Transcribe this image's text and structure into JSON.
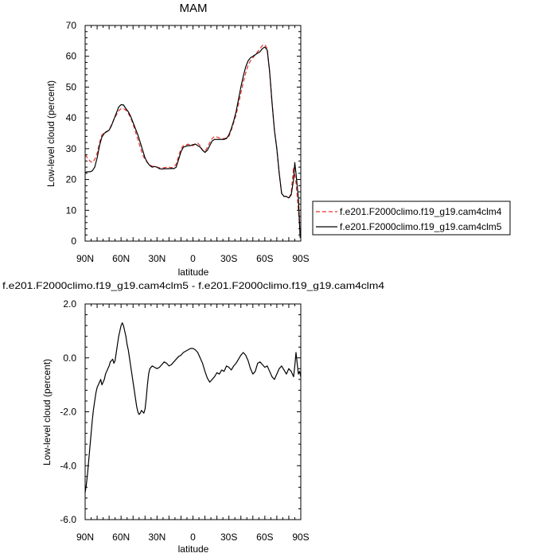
{
  "chart_data": [
    {
      "type": "line",
      "title": "MAM",
      "xlabel": "latitude",
      "ylabel": "Low-level cloud (percent)",
      "xlim": [
        90,
        -90
      ],
      "ylim": [
        0,
        70
      ],
      "x_ticks": [
        {
          "value": 90,
          "label": "90N"
        },
        {
          "value": 60,
          "label": "60N"
        },
        {
          "value": 30,
          "label": "30N"
        },
        {
          "value": 0,
          "label": "0"
        },
        {
          "value": -30,
          "label": "30S"
        },
        {
          "value": -60,
          "label": "60S"
        },
        {
          "value": -90,
          "label": "90S"
        }
      ],
      "y_ticks": [
        {
          "value": 0,
          "label": "0"
        },
        {
          "value": 10,
          "label": "10"
        },
        {
          "value": 20,
          "label": "20"
        },
        {
          "value": 30,
          "label": "30"
        },
        {
          "value": 40,
          "label": "40"
        },
        {
          "value": 50,
          "label": "50"
        },
        {
          "value": 60,
          "label": "60"
        },
        {
          "value": 70,
          "label": "70"
        }
      ],
      "legend_position": "right",
      "series": [
        {
          "name": "f.e201.F2000climo.f19_g19.cam4clm4",
          "color": "#e8302a",
          "dashed": true,
          "x": [
            90,
            88,
            86,
            84,
            82,
            80,
            78,
            76,
            74,
            72,
            70,
            66,
            62,
            60,
            58,
            56,
            54,
            52,
            50,
            48,
            46,
            44,
            42,
            40,
            38,
            36,
            34,
            32,
            30,
            28,
            26,
            24,
            22,
            20,
            18,
            16,
            14,
            12,
            10,
            8,
            6,
            4,
            2,
            0,
            -2,
            -4,
            -6,
            -8,
            -10,
            -12,
            -14,
            -16,
            -18,
            -20,
            -22,
            -24,
            -26,
            -28,
            -30,
            -32,
            -34,
            -36,
            -38,
            -40,
            -42,
            -44,
            -46,
            -48,
            -50,
            -52,
            -54,
            -56,
            -58,
            -60,
            -62,
            -64,
            -66,
            -68,
            -70,
            -72,
            -74,
            -76,
            -78,
            -80,
            -82,
            -84,
            -86,
            -88,
            -89.5
          ],
          "y": [
            28.0,
            27.0,
            26.0,
            25.5,
            26.5,
            28.5,
            32.0,
            34.5,
            35.2,
            35.6,
            36.0,
            39.5,
            42.3,
            43.0,
            43.0,
            42.5,
            41.5,
            40.0,
            38.0,
            35.5,
            33.0,
            30.5,
            28.0,
            26.5,
            25.5,
            24.8,
            24.3,
            24.2,
            24.0,
            23.8,
            23.7,
            23.8,
            24.0,
            24.0,
            23.8,
            24.0,
            25.0,
            27.5,
            30.0,
            31.0,
            31.2,
            31.5,
            31.0,
            31.0,
            31.5,
            31.8,
            31.0,
            29.5,
            29.0,
            30.5,
            32.0,
            33.3,
            34.0,
            33.8,
            33.5,
            33.3,
            33.3,
            33.5,
            34.0,
            36.0,
            38.5,
            41.0,
            44.5,
            48.0,
            51.5,
            54.5,
            57.0,
            58.5,
            59.5,
            60.5,
            61.5,
            62.5,
            63.5,
            63.8,
            62.5,
            55.0,
            45.0,
            36.0,
            30.0,
            22.0,
            15.5,
            14.5,
            14.5,
            14.0,
            15.5,
            24.0,
            19.0,
            10.0,
            2.0
          ]
        },
        {
          "name": "f.e201.F2000climo.f19_g19.cam4clm5",
          "color": "#000000",
          "dashed": false,
          "x": [
            90,
            88,
            86,
            84,
            82,
            80,
            78,
            76,
            74,
            72,
            70,
            68,
            66,
            64,
            62,
            60,
            58,
            56,
            54,
            52,
            50,
            48,
            46,
            44,
            42,
            40,
            38,
            36,
            34,
            32,
            30,
            28,
            26,
            24,
            22,
            20,
            18,
            16,
            14,
            12,
            10,
            8,
            6,
            4,
            2,
            0,
            -2,
            -4,
            -6,
            -8,
            -10,
            -12,
            -14,
            -16,
            -18,
            -20,
            -22,
            -24,
            -26,
            -28,
            -30,
            -32,
            -34,
            -36,
            -38,
            -40,
            -42,
            -44,
            -46,
            -48,
            -50,
            -52,
            -54,
            -56,
            -58,
            -60,
            -62,
            -64,
            -66,
            -68,
            -70,
            -72,
            -74,
            -76,
            -78,
            -80,
            -82,
            -84,
            -85,
            -86,
            -88,
            -89.5
          ],
          "y": [
            22.3,
            22.5,
            22.5,
            22.8,
            24.0,
            27.0,
            31.0,
            33.8,
            35.0,
            35.5,
            36.0,
            37.5,
            39.5,
            41.5,
            43.5,
            44.3,
            44.2,
            43.0,
            42.0,
            40.5,
            38.5,
            36.5,
            34.5,
            32.0,
            29.5,
            27.0,
            25.5,
            24.5,
            24.0,
            24.2,
            24.0,
            23.5,
            23.4,
            23.5,
            23.5,
            23.5,
            23.6,
            23.5,
            24.0,
            26.5,
            29.0,
            30.5,
            30.8,
            31.0,
            31.0,
            31.3,
            31.5,
            31.0,
            30.5,
            29.5,
            28.8,
            29.5,
            31.0,
            32.5,
            33.0,
            33.0,
            33.0,
            33.0,
            33.0,
            33.3,
            34.5,
            36.5,
            39.0,
            42.0,
            46.0,
            50.0,
            53.5,
            56.5,
            58.5,
            59.5,
            60.0,
            60.5,
            61.0,
            61.5,
            62.5,
            63.0,
            62.0,
            55.0,
            45.0,
            36.0,
            30.0,
            22.0,
            15.5,
            14.5,
            14.5,
            14.0,
            15.0,
            20.0,
            25.5,
            22.0,
            14.0,
            1.0
          ]
        }
      ]
    },
    {
      "type": "line",
      "title": "f.e201.F2000climo.f19_g19.cam4clm5 - f.e201.F2000climo.f19_g19.cam4clm4",
      "xlabel": "latitude",
      "ylabel": "Low-level cloud (percent)",
      "xlim": [
        90,
        -90
      ],
      "ylim": [
        -6,
        2
      ],
      "x_ticks": [
        {
          "value": 90,
          "label": "90N"
        },
        {
          "value": 60,
          "label": "60N"
        },
        {
          "value": 30,
          "label": "30N"
        },
        {
          "value": 0,
          "label": "0"
        },
        {
          "value": -30,
          "label": "30S"
        },
        {
          "value": -60,
          "label": "60S"
        },
        {
          "value": -90,
          "label": "90S"
        }
      ],
      "y_ticks": [
        {
          "value": -6,
          "label": "-6.0"
        },
        {
          "value": -4,
          "label": "-4.0"
        },
        {
          "value": -2,
          "label": "-2.0"
        },
        {
          "value": 0,
          "label": "0.0"
        },
        {
          "value": 2,
          "label": "2.0"
        }
      ],
      "series": [
        {
          "name": "",
          "color": "#000000",
          "dashed": false,
          "x": [
            90,
            89,
            88,
            87,
            86,
            85,
            84,
            83,
            82,
            81,
            80,
            79,
            78,
            77,
            76,
            75,
            74,
            73,
            72,
            71,
            70,
            69,
            68,
            67,
            66,
            65,
            64,
            63,
            62,
            61,
            60,
            59,
            58,
            57,
            56,
            55,
            54,
            53,
            52,
            51,
            50,
            49,
            48,
            47,
            46,
            45,
            44,
            43,
            42,
            41,
            40,
            39,
            38,
            37,
            36,
            34,
            32,
            30,
            28,
            26,
            24,
            22,
            20,
            18,
            16,
            14,
            12,
            10,
            8,
            6,
            4,
            2,
            0,
            -2,
            -4,
            -6,
            -8,
            -10,
            -12,
            -14,
            -16,
            -18,
            -20,
            -22,
            -24,
            -26,
            -28,
            -30,
            -32,
            -34,
            -36,
            -38,
            -40,
            -42,
            -44,
            -46,
            -48,
            -50,
            -52,
            -54,
            -56,
            -58,
            -60,
            -62,
            -64,
            -66,
            -68,
            -70,
            -72,
            -74,
            -76,
            -78,
            -80,
            -82,
            -84,
            -85,
            -86,
            -87,
            -88,
            -89,
            -90
          ],
          "y": [
            -5.0,
            -4.7,
            -4.3,
            -3.8,
            -3.3,
            -2.8,
            -2.3,
            -1.9,
            -1.6,
            -1.3,
            -1.1,
            -1.0,
            -0.9,
            -0.8,
            -1.0,
            -0.9,
            -0.8,
            -0.6,
            -0.5,
            -0.4,
            -0.3,
            -0.15,
            -0.1,
            -0.05,
            -0.2,
            -0.1,
            0.2,
            0.5,
            0.8,
            1.0,
            1.2,
            1.3,
            1.2,
            1.0,
            0.8,
            0.5,
            0.3,
            0.0,
            -0.3,
            -0.6,
            -0.9,
            -1.2,
            -1.5,
            -1.8,
            -2.0,
            -2.1,
            -2.05,
            -1.95,
            -2.0,
            -2.05,
            -1.9,
            -1.5,
            -1.0,
            -0.6,
            -0.4,
            -0.3,
            -0.35,
            -0.4,
            -0.35,
            -0.25,
            -0.15,
            -0.2,
            -0.3,
            -0.25,
            -0.15,
            -0.05,
            0.05,
            0.1,
            0.2,
            0.25,
            0.3,
            0.35,
            0.35,
            0.3,
            0.2,
            0.0,
            -0.2,
            -0.5,
            -0.75,
            -0.9,
            -0.8,
            -0.7,
            -0.55,
            -0.6,
            -0.45,
            -0.5,
            -0.3,
            -0.35,
            -0.45,
            -0.3,
            -0.2,
            -0.05,
            0.1,
            0.2,
            0.1,
            -0.1,
            -0.4,
            -0.6,
            -0.5,
            -0.2,
            -0.15,
            -0.25,
            -0.35,
            -0.3,
            -0.5,
            -0.7,
            -0.8,
            -0.6,
            -0.4,
            -0.3,
            -0.45,
            -0.6,
            -0.4,
            -0.5,
            -0.7,
            -0.3,
            0.2,
            -0.2,
            -0.6,
            -0.5,
            -0.7
          ]
        }
      ]
    }
  ]
}
